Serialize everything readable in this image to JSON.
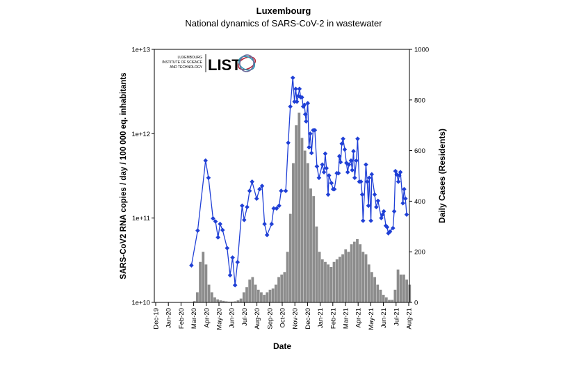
{
  "chart_data": {
    "type": "bar+line",
    "title": "Luxembourg",
    "subtitle": "National dynamics of SARS-CoV-2 in wastewater",
    "xlabel": "Date",
    "ylabel_left": "SARS-CoV2 RNA copies / day  / 100 000 eq. inhabitants",
    "ylabel_right": "Daily Cases (Residents)",
    "x_range": [
      "2019-12-01",
      "2021-08-01"
    ],
    "x_tick_labels": [
      "Dec-19",
      "Jan-20",
      "Feb-20",
      "Mar-20",
      "Apr-20",
      "May-20",
      "Jun-20",
      "Jul-20",
      "Aug-20",
      "Sep-20",
      "Oct-20",
      "Nov-20",
      "Dec-20",
      "Jan-21",
      "Feb-21",
      "Mar-21",
      "Apr-21",
      "May-21",
      "Jun-21",
      "Jul-21",
      "Aug-21"
    ],
    "y_left": {
      "scale": "log",
      "range": [
        10000000000.0,
        10000000000000.0
      ],
      "tick_labels": [
        "1e+10",
        "1e+11",
        "1e+12",
        "1e+13"
      ],
      "ticks": [
        10000000000.0,
        100000000000.0,
        1000000000000.0,
        10000000000000.0
      ]
    },
    "y_right": {
      "scale": "linear",
      "range": [
        0,
        1000
      ],
      "tick_labels": [
        "0",
        "200",
        "400",
        "600",
        "800",
        "1000"
      ],
      "ticks": [
        0,
        200,
        400,
        600,
        800,
        1000
      ]
    },
    "grid": false,
    "colors": {
      "line": "#1f3fd6",
      "bars": "#8c8c8c"
    },
    "logo": {
      "text_lines": [
        "LUXEMBOURG",
        "INSTITUTE OF SCIENCE",
        "AND TECHNOLOGY"
      ],
      "wordmark": "LIST"
    },
    "series": [
      {
        "type": "line",
        "axis": "left",
        "marker": "diamond",
        "points": [
          [
            "2020-02-25",
            27500000000.0
          ],
          [
            "2020-03-11",
            71000000000.0
          ],
          [
            "2020-03-30",
            480000000000.0
          ],
          [
            "2020-04-06",
            300000000000.0
          ],
          [
            "2020-04-17",
            99000000000.0
          ],
          [
            "2020-04-23",
            91000000000.0
          ],
          [
            "2020-04-29",
            59000000000.0
          ],
          [
            "2020-05-04",
            85000000000.0
          ],
          [
            "2020-05-10",
            72000000000.0
          ],
          [
            "2020-05-21",
            44000000000.0
          ],
          [
            "2020-05-28",
            21000000000.0
          ],
          [
            "2020-06-03",
            34000000000.0
          ],
          [
            "2020-06-09",
            16000000000.0
          ],
          [
            "2020-06-15",
            30000000000.0
          ],
          [
            "2020-06-26",
            140000000000.0
          ],
          [
            "2020-07-01",
            95000000000.0
          ],
          [
            "2020-07-08",
            135000000000.0
          ],
          [
            "2020-07-14",
            210000000000.0
          ],
          [
            "2020-07-20",
            270000000000.0
          ],
          [
            "2020-07-31",
            170000000000.0
          ],
          [
            "2020-08-07",
            220000000000.0
          ],
          [
            "2020-08-13",
            240000000000.0
          ],
          [
            "2020-08-19",
            85000000000.0
          ],
          [
            "2020-08-25",
            63000000000.0
          ],
          [
            "2020-09-05",
            85000000000.0
          ],
          [
            "2020-09-10",
            130000000000.0
          ],
          [
            "2020-09-17",
            130000000000.0
          ],
          [
            "2020-09-23",
            140000000000.0
          ],
          [
            "2020-09-28",
            210000000000.0
          ],
          [
            "2020-10-09",
            210000000000.0
          ],
          [
            "2020-10-15",
            780000000000.0
          ],
          [
            "2020-10-20",
            2100000000000.0
          ],
          [
            "2020-10-26",
            4600000000000.0
          ],
          [
            "2020-10-30",
            2400000000000.0
          ],
          [
            "2020-11-02",
            3400000000000.0
          ],
          [
            "2020-11-05",
            2400000000000.0
          ],
          [
            "2020-11-08",
            2800000000000.0
          ],
          [
            "2020-11-11",
            3400000000000.0
          ],
          [
            "2020-11-14",
            2700000000000.0
          ],
          [
            "2020-11-17",
            2700000000000.0
          ],
          [
            "2020-11-20",
            2100000000000.0
          ],
          [
            "2020-11-23",
            2200000000000.0
          ],
          [
            "2020-11-25",
            1700000000000.0
          ],
          [
            "2020-11-27",
            1400000000000.0
          ],
          [
            "2020-12-01",
            2300000000000.0
          ],
          [
            "2020-12-04",
            690000000000.0
          ],
          [
            "2020-12-07",
            1000000000000.0
          ],
          [
            "2020-12-10",
            590000000000.0
          ],
          [
            "2020-12-14",
            1100000000000.0
          ],
          [
            "2020-12-18",
            1100000000000.0
          ],
          [
            "2020-12-23",
            410000000000.0
          ],
          [
            "2020-12-28",
            300000000000.0
          ],
          [
            "2021-01-05",
            430000000000.0
          ],
          [
            "2021-01-09",
            350000000000.0
          ],
          [
            "2021-01-12",
            580000000000.0
          ],
          [
            "2021-01-15",
            390000000000.0
          ],
          [
            "2021-01-19",
            190000000000.0
          ],
          [
            "2021-01-21",
            320000000000.0
          ],
          [
            "2021-01-27",
            260000000000.0
          ],
          [
            "2021-01-31",
            220000000000.0
          ],
          [
            "2021-02-03",
            220000000000.0
          ],
          [
            "2021-02-09",
            340000000000.0
          ],
          [
            "2021-02-13",
            340000000000.0
          ],
          [
            "2021-02-15",
            540000000000.0
          ],
          [
            "2021-02-18",
            460000000000.0
          ],
          [
            "2021-02-21",
            760000000000.0
          ],
          [
            "2021-02-24",
            870000000000.0
          ],
          [
            "2021-02-28",
            650000000000.0
          ],
          [
            "2021-03-04",
            450000000000.0
          ],
          [
            "2021-03-07",
            350000000000.0
          ],
          [
            "2021-03-10",
            430000000000.0
          ],
          [
            "2021-03-15",
            480000000000.0
          ],
          [
            "2021-03-18",
            370000000000.0
          ],
          [
            "2021-03-21",
            620000000000.0
          ],
          [
            "2021-03-24",
            300000000000.0
          ],
          [
            "2021-03-28",
            480000000000.0
          ],
          [
            "2021-03-31",
            870000000000.0
          ],
          [
            "2021-04-04",
            270000000000.0
          ],
          [
            "2021-04-08",
            270000000000.0
          ],
          [
            "2021-04-11",
            190000000000.0
          ],
          [
            "2021-04-13",
            93000000000.0
          ],
          [
            "2021-04-20",
            430000000000.0
          ],
          [
            "2021-04-23",
            270000000000.0
          ],
          [
            "2021-04-26",
            140000000000.0
          ],
          [
            "2021-04-28",
            300000000000.0
          ],
          [
            "2021-05-02",
            93000000000.0
          ],
          [
            "2021-05-04",
            330000000000.0
          ],
          [
            "2021-05-11",
            190000000000.0
          ],
          [
            "2021-05-15",
            135000000000.0
          ],
          [
            "2021-05-19",
            160000000000.0
          ],
          [
            "2021-05-27",
            100000000000.0
          ],
          [
            "2021-05-30",
            110000000000.0
          ],
          [
            "2021-06-02",
            120000000000.0
          ],
          [
            "2021-06-07",
            81000000000.0
          ],
          [
            "2021-06-10",
            78000000000.0
          ],
          [
            "2021-06-13",
            66000000000.0
          ],
          [
            "2021-06-17",
            69000000000.0
          ],
          [
            "2021-06-24",
            76000000000.0
          ],
          [
            "2021-06-27",
            120000000000.0
          ],
          [
            "2021-06-30",
            360000000000.0
          ],
          [
            "2021-07-03",
            330000000000.0
          ],
          [
            "2021-07-07",
            270000000000.0
          ],
          [
            "2021-07-09",
            320000000000.0
          ],
          [
            "2021-07-12",
            350000000000.0
          ],
          [
            "2021-07-18",
            150000000000.0
          ],
          [
            "2021-07-21",
            220000000000.0
          ],
          [
            "2021-07-24",
            170000000000.0
          ],
          [
            "2021-07-27",
            110000000000.0
          ]
        ]
      },
      {
        "type": "bar",
        "axis": "right",
        "points": [
          [
            "2020-02-29",
            5
          ],
          [
            "2020-03-07",
            40
          ],
          [
            "2020-03-14",
            160
          ],
          [
            "2020-03-21",
            200
          ],
          [
            "2020-03-28",
            150
          ],
          [
            "2020-04-04",
            70
          ],
          [
            "2020-04-11",
            40
          ],
          [
            "2020-04-18",
            20
          ],
          [
            "2020-04-25",
            12
          ],
          [
            "2020-05-02",
            8
          ],
          [
            "2020-05-09",
            6
          ],
          [
            "2020-05-16",
            4
          ],
          [
            "2020-05-23",
            3
          ],
          [
            "2020-05-30",
            3
          ],
          [
            "2020-06-06",
            4
          ],
          [
            "2020-06-13",
            8
          ],
          [
            "2020-06-20",
            15
          ],
          [
            "2020-06-27",
            40
          ],
          [
            "2020-07-04",
            60
          ],
          [
            "2020-07-11",
            90
          ],
          [
            "2020-07-18",
            100
          ],
          [
            "2020-07-25",
            70
          ],
          [
            "2020-08-01",
            50
          ],
          [
            "2020-08-08",
            40
          ],
          [
            "2020-08-15",
            30
          ],
          [
            "2020-08-22",
            40
          ],
          [
            "2020-08-29",
            50
          ],
          [
            "2020-09-05",
            55
          ],
          [
            "2020-09-12",
            70
          ],
          [
            "2020-09-19",
            100
          ],
          [
            "2020-09-26",
            110
          ],
          [
            "2020-10-03",
            120
          ],
          [
            "2020-10-10",
            200
          ],
          [
            "2020-10-17",
            350
          ],
          [
            "2020-10-24",
            550
          ],
          [
            "2020-10-31",
            700
          ],
          [
            "2020-11-07",
            750
          ],
          [
            "2020-11-14",
            650
          ],
          [
            "2020-11-21",
            600
          ],
          [
            "2020-11-28",
            550
          ],
          [
            "2020-12-05",
            450
          ],
          [
            "2020-12-12",
            420
          ],
          [
            "2020-12-19",
            300
          ],
          [
            "2020-12-26",
            200
          ],
          [
            "2021-01-02",
            170
          ],
          [
            "2021-01-09",
            160
          ],
          [
            "2021-01-16",
            150
          ],
          [
            "2021-01-23",
            140
          ],
          [
            "2021-01-30",
            160
          ],
          [
            "2021-02-06",
            170
          ],
          [
            "2021-02-13",
            180
          ],
          [
            "2021-02-20",
            190
          ],
          [
            "2021-02-27",
            210
          ],
          [
            "2021-03-06",
            200
          ],
          [
            "2021-03-13",
            230
          ],
          [
            "2021-03-20",
            240
          ],
          [
            "2021-03-27",
            250
          ],
          [
            "2021-04-03",
            230
          ],
          [
            "2021-04-10",
            200
          ],
          [
            "2021-04-17",
            190
          ],
          [
            "2021-04-24",
            150
          ],
          [
            "2021-05-01",
            120
          ],
          [
            "2021-05-08",
            100
          ],
          [
            "2021-05-15",
            70
          ],
          [
            "2021-05-22",
            50
          ],
          [
            "2021-05-29",
            30
          ],
          [
            "2021-06-05",
            20
          ],
          [
            "2021-06-12",
            10
          ],
          [
            "2021-06-19",
            10
          ],
          [
            "2021-06-26",
            50
          ],
          [
            "2021-07-03",
            130
          ],
          [
            "2021-07-10",
            110
          ],
          [
            "2021-07-17",
            110
          ],
          [
            "2021-07-24",
            90
          ],
          [
            "2021-07-31",
            70
          ]
        ]
      }
    ]
  }
}
